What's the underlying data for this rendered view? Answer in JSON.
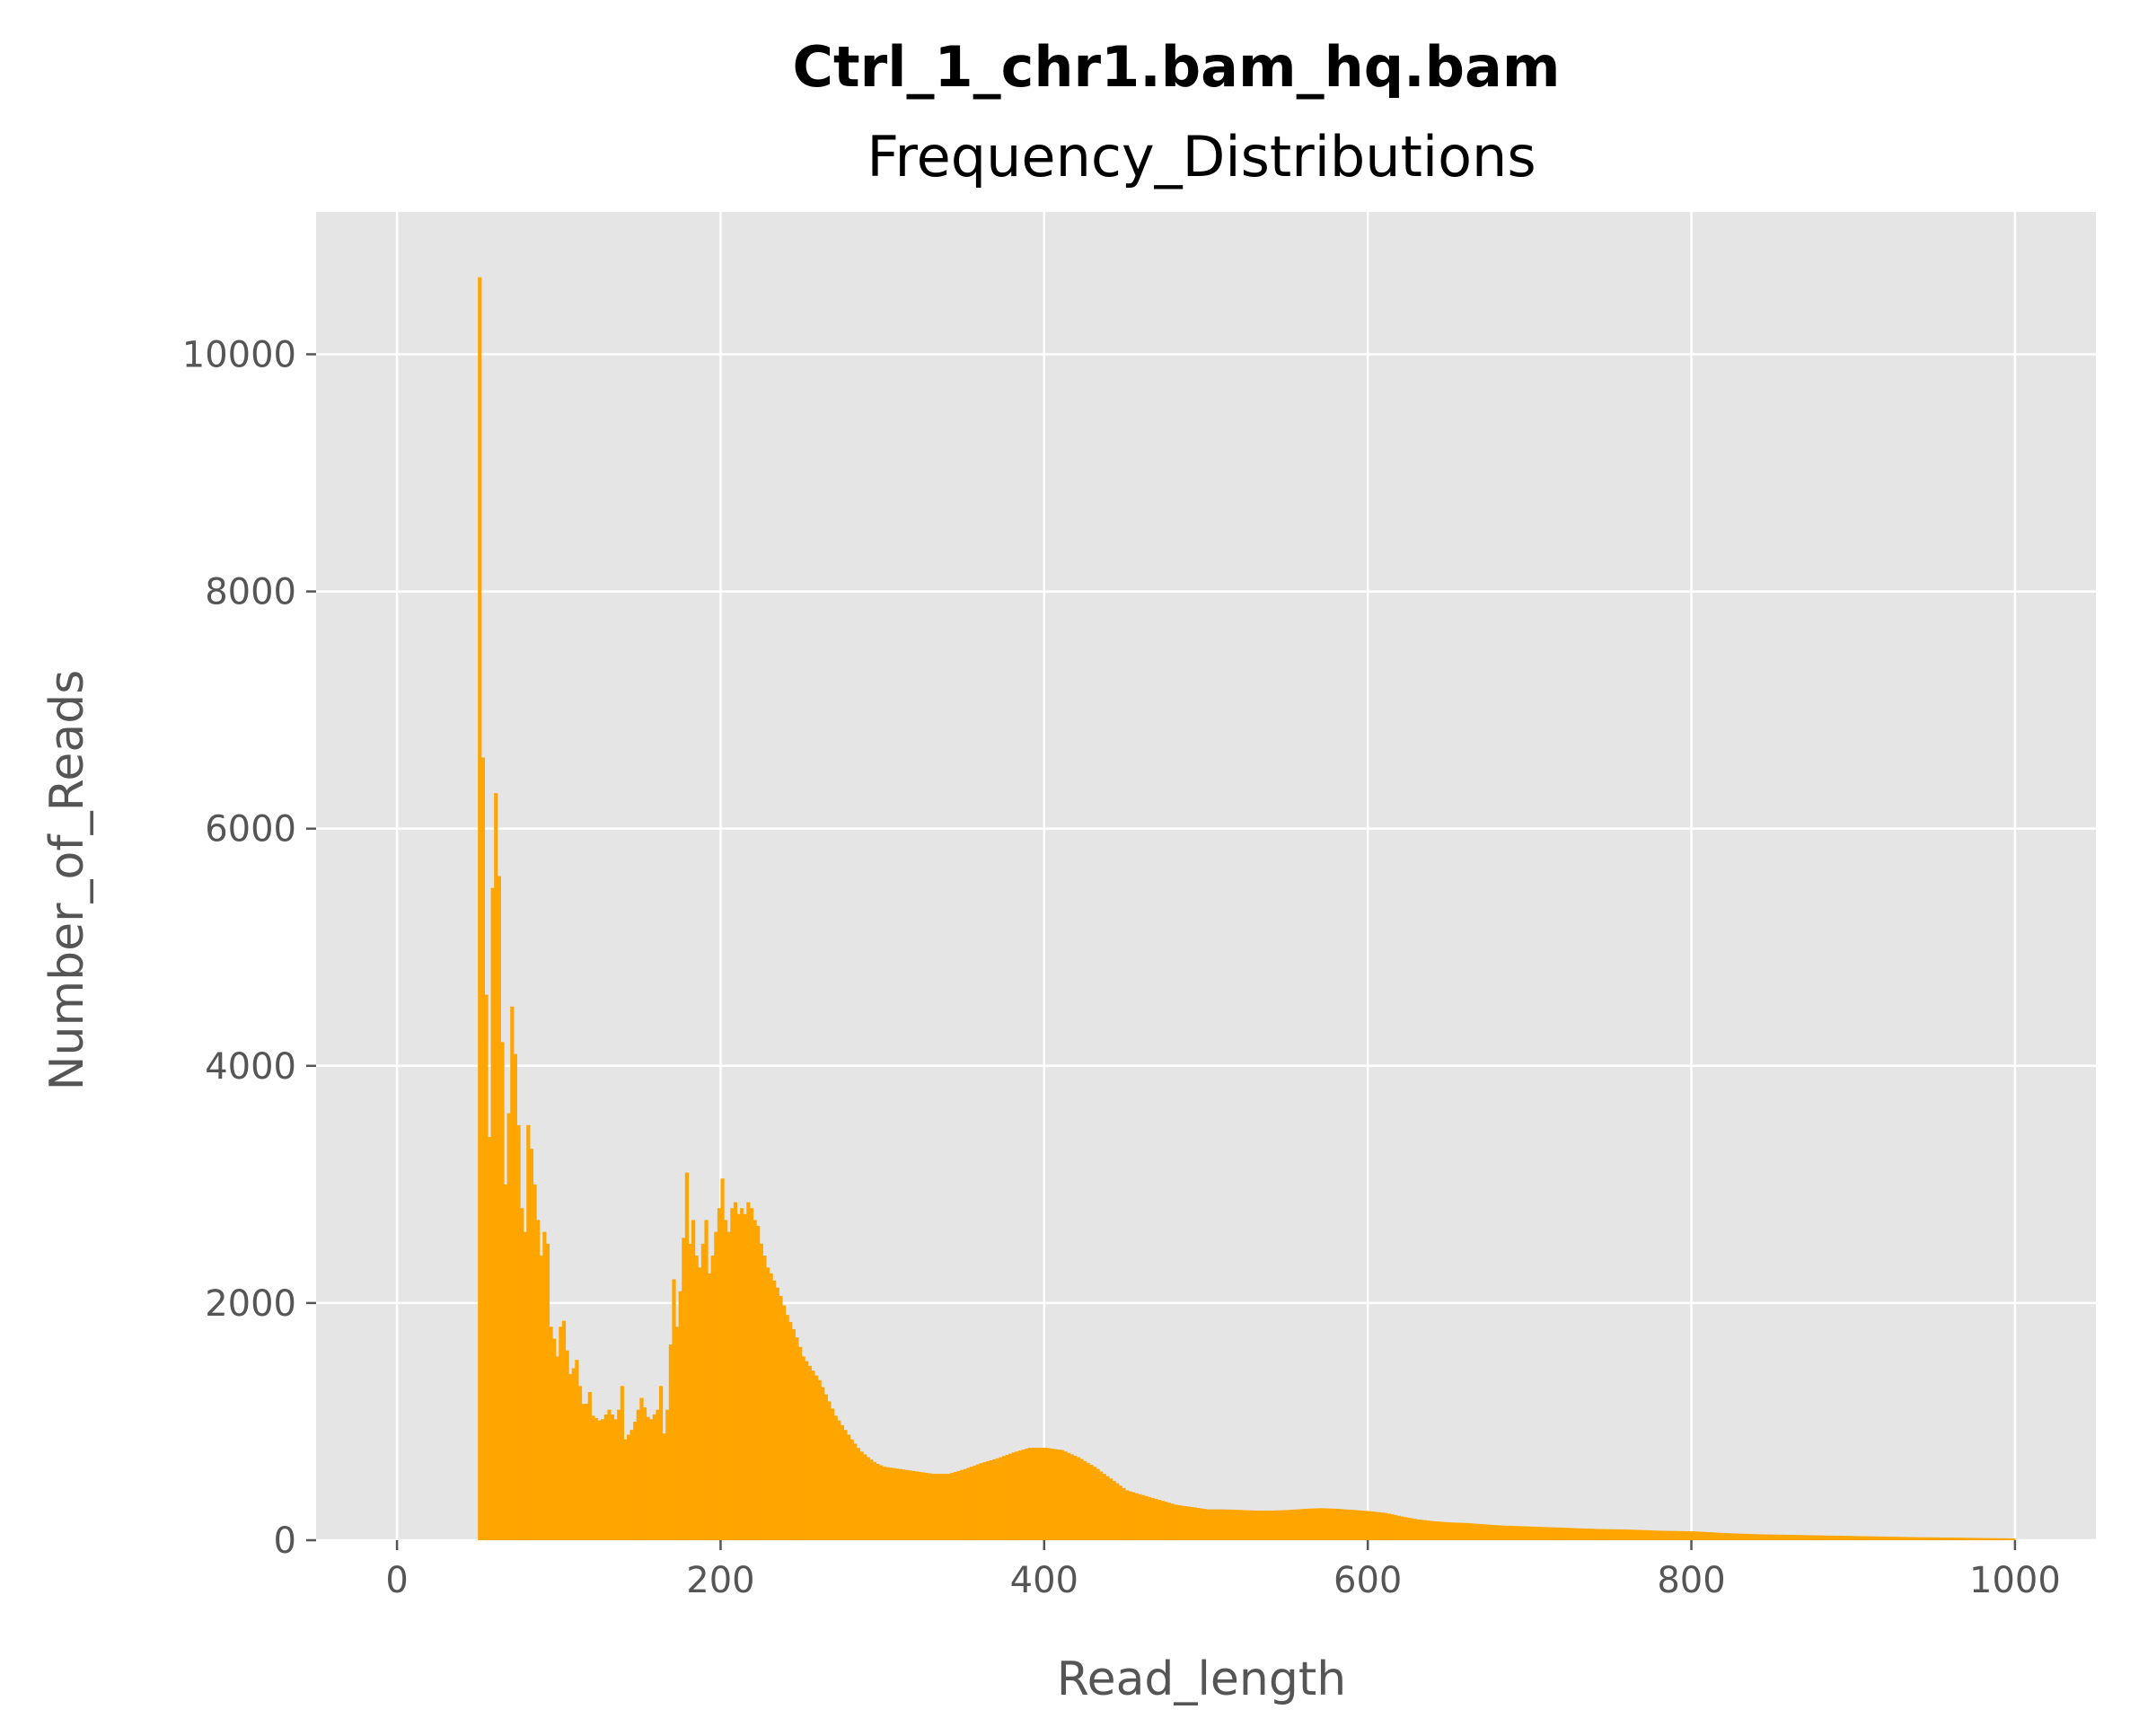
{
  "colors": {
    "bar": "#ffa500",
    "plot_background": "#e5e5e5",
    "grid": "#ffffff",
    "tick_text": "#555555",
    "title_text": "#000000"
  },
  "chart_data": {
    "type": "bar",
    "title": "Ctrl_1_chr1.bam_hq.bam",
    "subtitle": "Frequency_Distributions",
    "xlabel": "Read_length",
    "ylabel": "Number_of_Reads",
    "xlim": [
      -50,
      1050
    ],
    "ylim": [
      0,
      11200
    ],
    "xticks": [
      0,
      200,
      400,
      600,
      800,
      1000
    ],
    "yticks": [
      0,
      2000,
      4000,
      6000,
      8000,
      10000
    ],
    "xtick_labels": [
      "0",
      "200",
      "400",
      "600",
      "800",
      "1000"
    ],
    "ytick_labels": [
      "0",
      "2000",
      "4000",
      "6000",
      "8000",
      "10000"
    ],
    "grid": true,
    "bin_width": 2,
    "profile_points": [
      [
        50,
        10650
      ],
      [
        52,
        6600
      ],
      [
        54,
        4600
      ],
      [
        56,
        3400
      ],
      [
        58,
        5500
      ],
      [
        60,
        6300
      ],
      [
        62,
        5600
      ],
      [
        64,
        4200
      ],
      [
        66,
        3000
      ],
      [
        68,
        3600
      ],
      [
        70,
        4500
      ],
      [
        72,
        4100
      ],
      [
        74,
        3500
      ],
      [
        76,
        2800
      ],
      [
        78,
        2600
      ],
      [
        80,
        3500
      ],
      [
        82,
        3300
      ],
      [
        84,
        3000
      ],
      [
        86,
        2700
      ],
      [
        88,
        2400
      ],
      [
        90,
        2600
      ],
      [
        92,
        2500
      ],
      [
        94,
        1800
      ],
      [
        96,
        1700
      ],
      [
        98,
        1550
      ],
      [
        100,
        1800
      ],
      [
        102,
        1850
      ],
      [
        104,
        1600
      ],
      [
        106,
        1400
      ],
      [
        108,
        1450
      ],
      [
        110,
        1520
      ],
      [
        112,
        1300
      ],
      [
        114,
        1150
      ],
      [
        116,
        1150
      ],
      [
        118,
        1250
      ],
      [
        120,
        1050
      ],
      [
        125,
        1000
      ],
      [
        130,
        1100
      ],
      [
        135,
        1000
      ],
      [
        138,
        1300
      ],
      [
        140,
        850
      ],
      [
        145,
        950
      ],
      [
        150,
        1200
      ],
      [
        155,
        1000
      ],
      [
        160,
        1100
      ],
      [
        162,
        1300
      ],
      [
        164,
        900
      ],
      [
        166,
        1100
      ],
      [
        168,
        1650
      ],
      [
        170,
        2200
      ],
      [
        172,
        1800
      ],
      [
        174,
        2100
      ],
      [
        176,
        2550
      ],
      [
        178,
        3100
      ],
      [
        180,
        2500
      ],
      [
        182,
        2700
      ],
      [
        184,
        2400
      ],
      [
        186,
        2300
      ],
      [
        188,
        2500
      ],
      [
        190,
        2700
      ],
      [
        192,
        2250
      ],
      [
        194,
        2400
      ],
      [
        196,
        2600
      ],
      [
        198,
        2800
      ],
      [
        200,
        3050
      ],
      [
        202,
        2700
      ],
      [
        204,
        2600
      ],
      [
        206,
        2800
      ],
      [
        208,
        2850
      ],
      [
        210,
        2750
      ],
      [
        212,
        2800
      ],
      [
        214,
        2750
      ],
      [
        216,
        2850
      ],
      [
        218,
        2800
      ],
      [
        220,
        2700
      ],
      [
        222,
        2650
      ],
      [
        224,
        2500
      ],
      [
        226,
        2400
      ],
      [
        228,
        2300
      ],
      [
        230,
        2250
      ],
      [
        235,
        2100
      ],
      [
        240,
        1900
      ],
      [
        245,
        1750
      ],
      [
        250,
        1550
      ],
      [
        255,
        1450
      ],
      [
        260,
        1350
      ],
      [
        265,
        1200
      ],
      [
        270,
        1050
      ],
      [
        275,
        950
      ],
      [
        280,
        850
      ],
      [
        285,
        760
      ],
      [
        290,
        700
      ],
      [
        295,
        650
      ],
      [
        300,
        620
      ],
      [
        310,
        600
      ],
      [
        320,
        580
      ],
      [
        330,
        560
      ],
      [
        340,
        560
      ],
      [
        350,
        600
      ],
      [
        360,
        650
      ],
      [
        370,
        690
      ],
      [
        380,
        740
      ],
      [
        390,
        780
      ],
      [
        400,
        780
      ],
      [
        410,
        760
      ],
      [
        420,
        700
      ],
      [
        430,
        620
      ],
      [
        440,
        520
      ],
      [
        450,
        420
      ],
      [
        460,
        380
      ],
      [
        470,
        340
      ],
      [
        480,
        300
      ],
      [
        490,
        280
      ],
      [
        500,
        260
      ],
      [
        510,
        260
      ],
      [
        520,
        255
      ],
      [
        530,
        250
      ],
      [
        540,
        250
      ],
      [
        550,
        255
      ],
      [
        560,
        265
      ],
      [
        570,
        270
      ],
      [
        580,
        265
      ],
      [
        590,
        255
      ],
      [
        600,
        245
      ],
      [
        610,
        230
      ],
      [
        620,
        200
      ],
      [
        630,
        175
      ],
      [
        640,
        160
      ],
      [
        650,
        150
      ],
      [
        660,
        145
      ],
      [
        670,
        135
      ],
      [
        680,
        125
      ],
      [
        690,
        120
      ],
      [
        700,
        115
      ],
      [
        720,
        105
      ],
      [
        740,
        95
      ],
      [
        760,
        90
      ],
      [
        780,
        80
      ],
      [
        800,
        75
      ],
      [
        820,
        60
      ],
      [
        840,
        50
      ],
      [
        860,
        45
      ],
      [
        880,
        40
      ],
      [
        900,
        35
      ],
      [
        920,
        30
      ],
      [
        940,
        25
      ],
      [
        960,
        22
      ],
      [
        980,
        18
      ],
      [
        998,
        15
      ]
    ]
  }
}
